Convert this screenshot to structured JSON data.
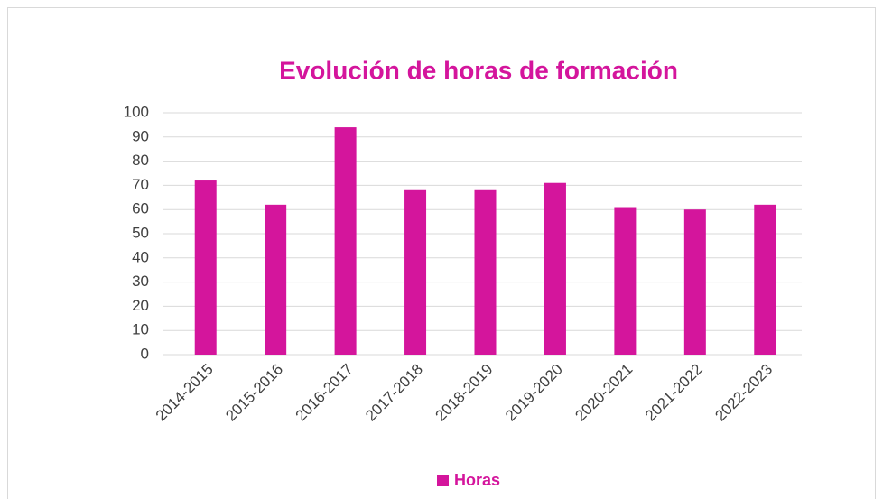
{
  "chart_data": {
    "type": "bar",
    "title": "Evolución de horas de formación",
    "categories": [
      "2014-2015",
      "2015-2016",
      "2016-2017",
      "2017-2018",
      "2018-2019",
      "2019-2020",
      "2020-2021",
      "2021-2022",
      "2022-2023"
    ],
    "series": [
      {
        "name": "Horas",
        "color": "#d4159c",
        "values": [
          72,
          62,
          94,
          68,
          68,
          71,
          61,
          60,
          62
        ]
      }
    ],
    "ylim": [
      0,
      100
    ],
    "yticks": [
      0,
      10,
      20,
      30,
      40,
      50,
      60,
      70,
      80,
      90,
      100
    ],
    "grid": true,
    "legend": "bottom"
  }
}
